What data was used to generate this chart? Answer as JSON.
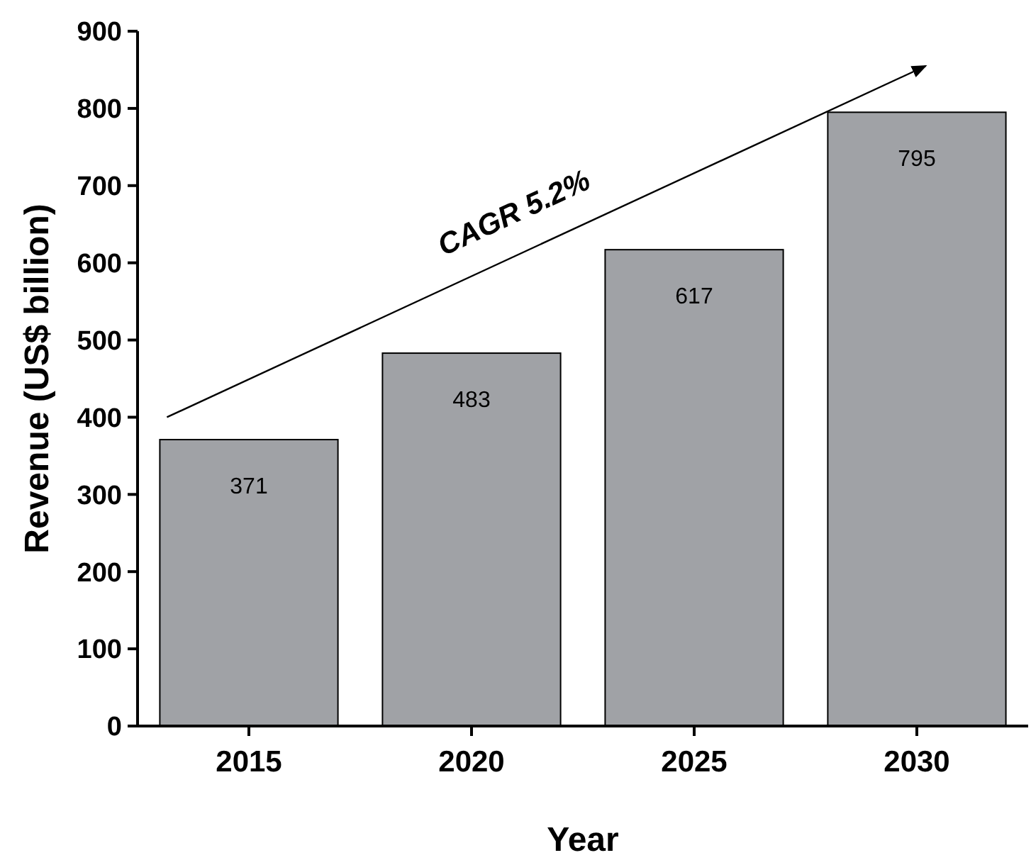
{
  "chart_data": {
    "type": "bar",
    "xlabel": "Year",
    "ylabel": "Revenue (US$ billion)",
    "categories": [
      "2015",
      "2020",
      "2025",
      "2030"
    ],
    "values": [
      371,
      483,
      617,
      795
    ],
    "color": "#a0a2a6",
    "ylim": [
      0,
      900
    ],
    "yticks": [
      0,
      100,
      200,
      300,
      400,
      500,
      600,
      700,
      800,
      900
    ],
    "data_labels": true,
    "grid": false,
    "annotations": [
      "CAGR 5.2%"
    ]
  }
}
